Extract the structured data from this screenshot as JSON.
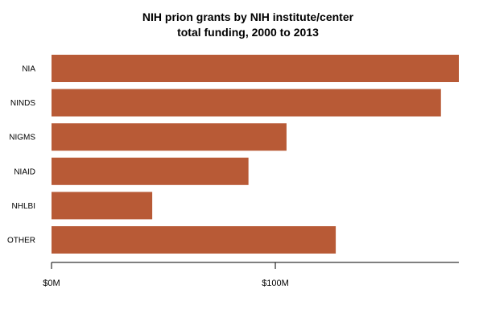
{
  "chart_data": {
    "type": "bar",
    "orientation": "horizontal",
    "title": "NIH prion grants by NIH institute/center",
    "subtitle": "total funding, 2000 to 2013",
    "categories": [
      "NIA",
      "NINDS",
      "NIGMS",
      "NIAID",
      "NHLBI",
      "OTHER"
    ],
    "values": [
      182,
      174,
      105,
      88,
      45,
      127
    ],
    "xlim": [
      0,
      182
    ],
    "xticks": [
      {
        "value": 0,
        "label": "$0M"
      },
      {
        "value": 100,
        "label": "$100M"
      }
    ],
    "bar_color": "#b85a36",
    "axis_color": "#000000",
    "grid": false,
    "legend": "none"
  }
}
